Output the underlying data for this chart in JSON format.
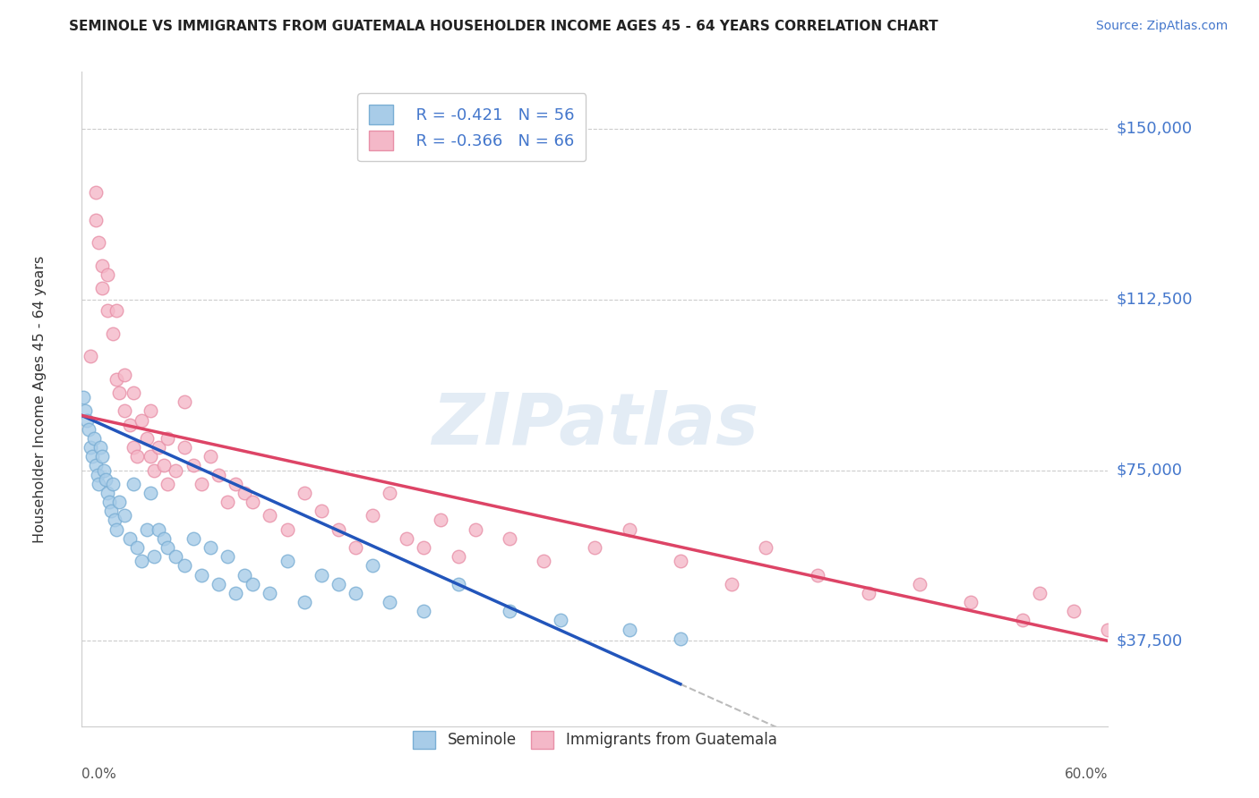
{
  "title": "SEMINOLE VS IMMIGRANTS FROM GUATEMALA HOUSEHOLDER INCOME AGES 45 - 64 YEARS CORRELATION CHART",
  "source": "Source: ZipAtlas.com",
  "ylabel": "Householder Income Ages 45 - 64 years",
  "xmin": 0.0,
  "xmax": 0.6,
  "ymin": 18750,
  "ymax": 162500,
  "yticks": [
    37500,
    75000,
    112500,
    150000
  ],
  "ytick_labels": [
    "$37,500",
    "$75,000",
    "$112,500",
    "$150,000"
  ],
  "blue_scatter_color": "#a8cce8",
  "pink_scatter_color": "#f4b8c8",
  "blue_edge_color": "#7aaed4",
  "pink_edge_color": "#e890a8",
  "blue_line_color": "#2255bb",
  "pink_line_color": "#dd4466",
  "dash_color": "#bbbbbb",
  "grid_color": "#cccccc",
  "text_color": "#4477cc",
  "watermark_text": "ZIPatlas",
  "legend_R_blue": "R = -0.421",
  "legend_N_blue": "N = 56",
  "legend_R_pink": "R = -0.366",
  "legend_N_pink": "N = 66",
  "blue_trend_x0": 0.0,
  "blue_trend_y0": 87000,
  "blue_trend_x1": 0.35,
  "blue_trend_y1": 28000,
  "pink_trend_x0": 0.0,
  "pink_trend_y0": 87000,
  "pink_trend_x1": 0.6,
  "pink_trend_y1": 37500,
  "seminole_x": [
    0.001,
    0.002,
    0.003,
    0.004,
    0.005,
    0.006,
    0.007,
    0.008,
    0.009,
    0.01,
    0.011,
    0.012,
    0.013,
    0.014,
    0.015,
    0.016,
    0.017,
    0.018,
    0.019,
    0.02,
    0.022,
    0.025,
    0.028,
    0.03,
    0.032,
    0.035,
    0.038,
    0.04,
    0.042,
    0.045,
    0.048,
    0.05,
    0.055,
    0.06,
    0.065,
    0.07,
    0.075,
    0.08,
    0.085,
    0.09,
    0.095,
    0.1,
    0.11,
    0.12,
    0.13,
    0.14,
    0.15,
    0.16,
    0.17,
    0.18,
    0.2,
    0.22,
    0.25,
    0.28,
    0.32,
    0.35
  ],
  "seminole_y": [
    91000,
    88000,
    86000,
    84000,
    80000,
    78000,
    82000,
    76000,
    74000,
    72000,
    80000,
    78000,
    75000,
    73000,
    70000,
    68000,
    66000,
    72000,
    64000,
    62000,
    68000,
    65000,
    60000,
    72000,
    58000,
    55000,
    62000,
    70000,
    56000,
    62000,
    60000,
    58000,
    56000,
    54000,
    60000,
    52000,
    58000,
    50000,
    56000,
    48000,
    52000,
    50000,
    48000,
    55000,
    46000,
    52000,
    50000,
    48000,
    54000,
    46000,
    44000,
    50000,
    44000,
    42000,
    40000,
    38000
  ],
  "guatemala_x": [
    0.005,
    0.008,
    0.01,
    0.012,
    0.015,
    0.018,
    0.02,
    0.022,
    0.025,
    0.028,
    0.03,
    0.032,
    0.035,
    0.038,
    0.04,
    0.042,
    0.045,
    0.048,
    0.05,
    0.055,
    0.06,
    0.065,
    0.07,
    0.075,
    0.08,
    0.085,
    0.09,
    0.095,
    0.1,
    0.11,
    0.12,
    0.13,
    0.14,
    0.15,
    0.16,
    0.17,
    0.18,
    0.19,
    0.2,
    0.21,
    0.22,
    0.23,
    0.25,
    0.27,
    0.3,
    0.32,
    0.35,
    0.38,
    0.4,
    0.43,
    0.46,
    0.49,
    0.52,
    0.55,
    0.56,
    0.58,
    0.6,
    0.012,
    0.02,
    0.03,
    0.008,
    0.04,
    0.05,
    0.015,
    0.025,
    0.06
  ],
  "guatemala_y": [
    100000,
    130000,
    125000,
    115000,
    110000,
    105000,
    95000,
    92000,
    88000,
    85000,
    80000,
    78000,
    86000,
    82000,
    78000,
    75000,
    80000,
    76000,
    72000,
    75000,
    80000,
    76000,
    72000,
    78000,
    74000,
    68000,
    72000,
    70000,
    68000,
    65000,
    62000,
    70000,
    66000,
    62000,
    58000,
    65000,
    70000,
    60000,
    58000,
    64000,
    56000,
    62000,
    60000,
    55000,
    58000,
    62000,
    55000,
    50000,
    58000,
    52000,
    48000,
    50000,
    46000,
    42000,
    48000,
    44000,
    40000,
    120000,
    110000,
    92000,
    136000,
    88000,
    82000,
    118000,
    96000,
    90000
  ]
}
